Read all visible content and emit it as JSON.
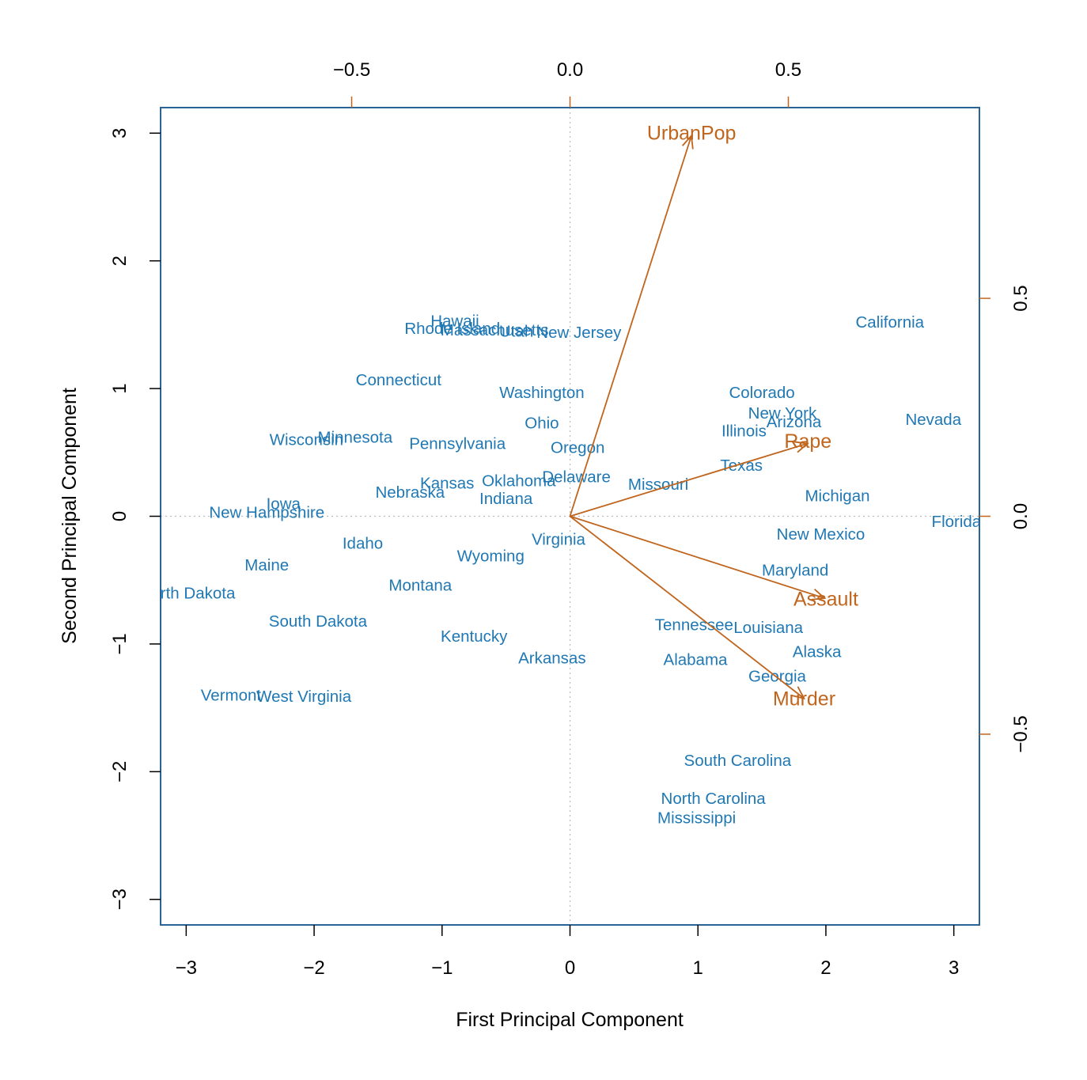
{
  "chart_data": {
    "type": "scatter",
    "subtype": "pca-biplot",
    "xlabel": "First Principal Component",
    "ylabel": "Second Principal Component",
    "xlim": [
      -3.2,
      3.2
    ],
    "ylim": [
      -3.2,
      3.2
    ],
    "x_ticks": [
      -3,
      -2,
      -1,
      0,
      1,
      2,
      3
    ],
    "x_tick_labels": [
      "−3",
      "−2",
      "−1",
      "0",
      "1",
      "2",
      "3"
    ],
    "y_ticks": [
      -3,
      -2,
      -1,
      0,
      1,
      2,
      3
    ],
    "y_tick_labels": [
      "−3",
      "−2",
      "−1",
      "0",
      "1",
      "2",
      "3"
    ],
    "loading_scale_ratio": 0.293,
    "top_ticks": [
      -0.5,
      0.0,
      0.5
    ],
    "top_tick_labels": [
      "−0.5",
      "0.0",
      "0.5"
    ],
    "right_ticks": [
      -0.5,
      0.0,
      0.5
    ],
    "right_tick_labels": [
      "−0.5",
      "0.0",
      "0.5"
    ],
    "grid": false,
    "reference_lines": [
      {
        "axis": "x",
        "value": 0
      },
      {
        "axis": "y",
        "value": 0
      }
    ],
    "colors": {
      "frame": "#2a6496",
      "scores": "#1f78b4",
      "loadings": "#c0651d",
      "reference": "#bbbbbb"
    },
    "points": [
      {
        "label": "Hawaii",
        "x": -0.9,
        "y": 1.53
      },
      {
        "label": "Rhode Island",
        "x": -0.92,
        "y": 1.47
      },
      {
        "label": "Massachusetts",
        "x": -0.59,
        "y": 1.46
      },
      {
        "label": "Utah",
        "x": -0.42,
        "y": 1.45
      },
      {
        "label": "New Jersey",
        "x": 0.07,
        "y": 1.44
      },
      {
        "label": "California",
        "x": 2.5,
        "y": 1.52
      },
      {
        "label": "Connecticut",
        "x": -1.34,
        "y": 1.07
      },
      {
        "label": "Washington",
        "x": -0.22,
        "y": 0.97
      },
      {
        "label": "Colorado",
        "x": 1.5,
        "y": 0.97
      },
      {
        "label": "New York",
        "x": 1.66,
        "y": 0.81
      },
      {
        "label": "Arizona",
        "x": 1.75,
        "y": 0.74
      },
      {
        "label": "Nevada",
        "x": 2.84,
        "y": 0.76
      },
      {
        "label": "Illinois",
        "x": 1.36,
        "y": 0.67
      },
      {
        "label": "Ohio",
        "x": -0.22,
        "y": 0.73
      },
      {
        "label": "Wisconsin",
        "x": -2.06,
        "y": 0.6
      },
      {
        "label": "Minnesota",
        "x": -1.68,
        "y": 0.62
      },
      {
        "label": "Pennsylvania",
        "x": -0.88,
        "y": 0.57
      },
      {
        "label": "Oregon",
        "x": 0.06,
        "y": 0.54
      },
      {
        "label": "Rape",
        "x": 1.86,
        "y": 0.58,
        "kind": "loading-label"
      },
      {
        "label": "Texas",
        "x": 1.34,
        "y": 0.4
      },
      {
        "label": "Kansas",
        "x": -0.96,
        "y": 0.26
      },
      {
        "label": "Oklahoma",
        "x": -0.4,
        "y": 0.28
      },
      {
        "label": "Delaware",
        "x": 0.05,
        "y": 0.31
      },
      {
        "label": "Missouri",
        "x": 0.69,
        "y": 0.25
      },
      {
        "label": "Nebraska",
        "x": -1.25,
        "y": 0.19
      },
      {
        "label": "Indiana",
        "x": -0.5,
        "y": 0.14
      },
      {
        "label": "Michigan",
        "x": 2.09,
        "y": 0.16
      },
      {
        "label": "Iowa",
        "x": -2.24,
        "y": 0.1
      },
      {
        "label": "New Hampshire",
        "x": -2.37,
        "y": 0.03
      },
      {
        "label": "Florida",
        "x": 3.02,
        "y": -0.04
      },
      {
        "label": "New Mexico",
        "x": 1.96,
        "y": -0.14
      },
      {
        "label": "Idaho",
        "x": -1.62,
        "y": -0.21
      },
      {
        "label": "Virginia",
        "x": -0.09,
        "y": -0.18
      },
      {
        "label": "Wyoming",
        "x": -0.62,
        "y": -0.31
      },
      {
        "label": "Maine",
        "x": -2.37,
        "y": -0.38
      },
      {
        "label": "Maryland",
        "x": 1.76,
        "y": -0.42
      },
      {
        "label": "North Dakota",
        "x": -2.99,
        "y": -0.6
      },
      {
        "label": "Montana",
        "x": -1.17,
        "y": -0.54
      },
      {
        "label": "South Dakota",
        "x": -1.97,
        "y": -0.82
      },
      {
        "label": "Tennessee",
        "x": 0.97,
        "y": -0.85
      },
      {
        "label": "Louisiana",
        "x": 1.55,
        "y": -0.87
      },
      {
        "label": "Kentucky",
        "x": -0.75,
        "y": -0.94
      },
      {
        "label": "Alabama",
        "x": 0.98,
        "y": -1.12
      },
      {
        "label": "Alaska",
        "x": 1.93,
        "y": -1.06
      },
      {
        "label": "Arkansas",
        "x": -0.14,
        "y": -1.11
      },
      {
        "label": "Georgia",
        "x": 1.62,
        "y": -1.25
      },
      {
        "label": "Vermont",
        "x": -2.65,
        "y": -1.4
      },
      {
        "label": "West Virginia",
        "x": -2.08,
        "y": -1.41
      },
      {
        "label": "South Carolina",
        "x": 1.31,
        "y": -1.91
      },
      {
        "label": "North Carolina",
        "x": 1.12,
        "y": -2.21
      },
      {
        "label": "Mississippi",
        "x": 0.99,
        "y": -2.36
      }
    ],
    "loadings": [
      {
        "name": "UrbanPop",
        "pc1": 0.278,
        "pc2": 0.873,
        "label_x": 0.95,
        "label_y": 3.0
      },
      {
        "name": "Rape",
        "pc1": 0.544,
        "pc2": 0.167
      },
      {
        "name": "Assault",
        "pc1": 0.583,
        "pc2": -0.188,
        "label_x": 2.0,
        "label_y": -0.65
      },
      {
        "name": "Murder",
        "pc1": 0.536,
        "pc2": -0.418,
        "label_x": 1.83,
        "label_y": -1.43
      }
    ]
  }
}
